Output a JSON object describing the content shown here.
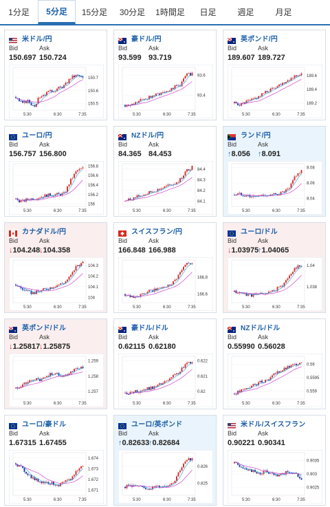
{
  "tabs": [
    {
      "label": "1分足",
      "active": false
    },
    {
      "label": "5分足",
      "active": true
    },
    {
      "label": "15分足",
      "active": false
    },
    {
      "label": "30分足",
      "active": false
    },
    {
      "label": "1時間足",
      "active": false
    },
    {
      "label": "日足",
      "active": false
    },
    {
      "label": "週足",
      "active": false
    },
    {
      "label": "月足",
      "active": false
    }
  ],
  "labels": {
    "bid": "Bid",
    "ask": "Ask"
  },
  "colors": {
    "link": "#1a5ea8",
    "up_arrow": "#1b6fc4",
    "down_arrow": "#dd3333",
    "candle_up": "#d33333",
    "candle_down": "#1f3fa6",
    "ma_short": "#39a9e0",
    "ma_long": "#cc44cc"
  },
  "cards": [
    {
      "pair": "米ドル/円",
      "flag": "us",
      "bid": "150.697",
      "ask": "150.724",
      "bid_arrow": "",
      "ask_arrow": "",
      "state": "none",
      "chart_data": {
        "type": "candlestick",
        "x_ticks": [
          "5:30",
          "6:30",
          "7:35"
        ],
        "y_ticks": [
          "150.7",
          "150.6",
          "150.5"
        ],
        "ylim": [
          150.45,
          150.78
        ],
        "trend": [
          150.55,
          150.5,
          150.52,
          150.48,
          150.56,
          150.58,
          150.6,
          150.62,
          150.64,
          150.7,
          150.72,
          150.7
        ]
      }
    },
    {
      "pair": "豪ドル/円",
      "flag": "au",
      "bid": "93.599",
      "ask": "93.719",
      "bid_arrow": "",
      "ask_arrow": "",
      "state": "none",
      "chart_data": {
        "type": "candlestick",
        "x_ticks": [
          "5:30",
          "6:30",
          "7:35"
        ],
        "y_ticks": [
          "93.6",
          "93.4"
        ],
        "ylim": [
          93.25,
          93.68
        ],
        "trend": [
          93.3,
          93.3,
          93.33,
          93.36,
          93.38,
          93.4,
          93.43,
          93.45,
          93.48,
          93.5,
          93.6,
          93.62
        ]
      }
    },
    {
      "pair": "英ポンド/円",
      "flag": "uk",
      "bid": "189.607",
      "ask": "189.727",
      "bid_arrow": "",
      "ask_arrow": "",
      "state": "none",
      "chart_data": {
        "type": "candlestick",
        "x_ticks": [
          "5:30",
          "6:30",
          "7:35"
        ],
        "y_ticks": [
          "189.6",
          "189.4",
          "189.2"
        ],
        "ylim": [
          189.1,
          189.72
        ],
        "trend": [
          189.2,
          189.18,
          189.22,
          189.25,
          189.3,
          189.35,
          189.4,
          189.45,
          189.5,
          189.55,
          189.6,
          189.62
        ]
      }
    },
    {
      "pair": "ユーロ/円",
      "flag": "eu",
      "bid": "156.757",
      "ask": "156.800",
      "bid_arrow": "",
      "ask_arrow": "",
      "state": "none",
      "chart_data": {
        "type": "candlestick",
        "x_ticks": [
          "5:30",
          "6:30",
          "7:35"
        ],
        "y_ticks": [
          "156.8",
          "156.6",
          "156.4",
          "156.2",
          "156"
        ],
        "ylim": [
          155.95,
          156.85
        ],
        "trend": [
          156.1,
          156.05,
          156.1,
          156.12,
          156.15,
          156.18,
          156.2,
          156.2,
          156.22,
          156.5,
          156.7,
          156.75
        ]
      }
    },
    {
      "pair": "NZドル/円",
      "flag": "nz",
      "bid": "84.365",
      "ask": "84.453",
      "bid_arrow": "",
      "ask_arrow": "",
      "state": "none",
      "chart_data": {
        "type": "candlestick",
        "x_ticks": [
          "5:30",
          "6:30",
          "7:35"
        ],
        "y_ticks": [
          "84.4",
          "84.3",
          "84.2",
          "84.1"
        ],
        "ylim": [
          84.05,
          84.45
        ],
        "trend": [
          84.1,
          84.12,
          84.14,
          84.16,
          84.18,
          84.2,
          84.22,
          84.24,
          84.26,
          84.3,
          84.38,
          84.42
        ]
      }
    },
    {
      "pair": "ランド/円",
      "flag": "za",
      "bid": "8.056",
      "ask": "8.091",
      "bid_arrow": "↑",
      "ask_arrow": "↑",
      "state": "up",
      "chart_data": {
        "type": "candlestick",
        "x_ticks": [
          "5:30",
          "6:30",
          "7:35"
        ],
        "y_ticks": [
          "8.08",
          "8.06",
          "8.04"
        ],
        "ylim": [
          8.03,
          8.085
        ],
        "trend": [
          8.045,
          8.046,
          8.044,
          8.042,
          8.043,
          8.045,
          8.044,
          8.046,
          8.048,
          8.052,
          8.07,
          8.075
        ]
      }
    },
    {
      "pair": "カナダドル/円",
      "flag": "ca",
      "bid": "104.248",
      "ask": "104.358",
      "bid_arrow": "↓",
      "ask_arrow": "↓",
      "state": "down",
      "chart_data": {
        "type": "candlestick",
        "x_ticks": [
          "5:30",
          "6:30",
          "7:35"
        ],
        "y_ticks": [
          "104.3",
          "104.2",
          "104.1",
          "104"
        ],
        "ylim": [
          103.95,
          104.35
        ],
        "trend": [
          104.12,
          104.08,
          104.05,
          104.04,
          104.06,
          104.08,
          104.1,
          104.12,
          104.14,
          104.2,
          104.3,
          104.32
        ]
      }
    },
    {
      "pair": "スイスフラン/円",
      "flag": "ch",
      "bid": "166.848",
      "ask": "166.988",
      "bid_arrow": "",
      "ask_arrow": "",
      "state": "none",
      "chart_data": {
        "type": "candlestick",
        "x_ticks": [
          "5:30",
          "6:30",
          "7:35"
        ],
        "y_ticks": [
          "166.8",
          "166.6"
        ],
        "ylim": [
          166.5,
          167.0
        ],
        "trend": [
          166.6,
          166.58,
          166.57,
          166.6,
          166.63,
          166.65,
          166.68,
          166.7,
          166.75,
          166.85,
          166.95,
          166.98
        ]
      }
    },
    {
      "pair": "ユーロ/ドル",
      "flag": "eu-us",
      "bid": "1.03975",
      "ask": "1.04065",
      "bid_arrow": "↓",
      "ask_arrow": "↑",
      "state": "down",
      "chart_data": {
        "type": "candlestick",
        "x_ticks": [
          "5:30",
          "6:30",
          "7:35"
        ],
        "y_ticks": [
          "1.04",
          "1.038"
        ],
        "ylim": [
          1.0365,
          1.0405
        ],
        "trend": [
          1.0375,
          1.0374,
          1.0373,
          1.0372,
          1.0373,
          1.0374,
          1.0375,
          1.0378,
          1.0382,
          1.039,
          1.0398,
          1.04
        ]
      }
    },
    {
      "pair": "英ポンド/ドル",
      "flag": "uk-us",
      "bid": "1.25817",
      "ask": "1.25875",
      "bid_arrow": "↓",
      "ask_arrow": "↓",
      "state": "down",
      "chart_data": {
        "type": "candlestick",
        "x_ticks": [
          "5:30",
          "6:30",
          "7:35"
        ],
        "y_ticks": [
          "1.259",
          "1.258",
          "1.257"
        ],
        "ylim": [
          1.2565,
          1.2593
        ],
        "trend": [
          1.2572,
          1.2574,
          1.2576,
          1.2578,
          1.2577,
          1.258,
          1.2582,
          1.2581,
          1.258,
          1.2583,
          1.2585,
          1.2586
        ]
      }
    },
    {
      "pair": "豪ドル/ドル",
      "flag": "au-us",
      "bid": "0.62115",
      "ask": "0.62180",
      "bid_arrow": "",
      "ask_arrow": "",
      "state": "none",
      "chart_data": {
        "type": "candlestick",
        "x_ticks": [
          "5:30",
          "6:30",
          "7:35"
        ],
        "y_ticks": [
          "0.622",
          "0.621",
          "0.62"
        ],
        "ylim": [
          0.6195,
          0.6223
        ],
        "trend": [
          0.6199,
          0.6199,
          0.62,
          0.6201,
          0.6202,
          0.6203,
          0.6205,
          0.6207,
          0.621,
          0.6213,
          0.6218,
          0.622
        ]
      }
    },
    {
      "pair": "NZドル/ドル",
      "flag": "nz-us",
      "bid": "0.55990",
      "ask": "0.56028",
      "bid_arrow": "",
      "ask_arrow": "",
      "state": "none",
      "chart_data": {
        "type": "candlestick",
        "x_ticks": [
          "5:30",
          "6:30",
          "7:35"
        ],
        "y_ticks": [
          "0.56",
          "0.5595",
          "0.559"
        ],
        "ylim": [
          0.5587,
          0.5603
        ],
        "trend": [
          0.5589,
          0.559,
          0.5591,
          0.5592,
          0.5593,
          0.5594,
          0.5595,
          0.5597,
          0.5598,
          0.5599,
          0.56,
          0.5601
        ]
      }
    },
    {
      "pair": "ユーロ/豪ドル",
      "flag": "eu-au",
      "bid": "1.67315",
      "ask": "1.67455",
      "bid_arrow": "",
      "ask_arrow": "",
      "state": "none",
      "chart_data": {
        "type": "candlestick",
        "x_ticks": [
          "5:30",
          "6:30",
          "7:35"
        ],
        "y_ticks": [
          "1.674",
          "1.673",
          "1.672",
          "1.671"
        ],
        "ylim": [
          1.6705,
          1.6745
        ],
        "trend": [
          1.6735,
          1.673,
          1.6725,
          1.672,
          1.6718,
          1.6717,
          1.6716,
          1.6715,
          1.6717,
          1.672,
          1.6728,
          1.6733
        ]
      }
    },
    {
      "pair": "ユーロ/英ポンド",
      "flag": "eu-uk",
      "bid": "0.82633",
      "ask": "0.82684",
      "bid_arrow": "↑",
      "ask_arrow": "↑",
      "state": "up",
      "chart_data": {
        "type": "candlestick",
        "x_ticks": [
          "5:30",
          "6:30",
          "7:35"
        ],
        "y_ticks": [
          "0.826",
          "0.825"
        ],
        "ylim": [
          0.8243,
          0.8268
        ],
        "trend": [
          0.8248,
          0.8249,
          0.8248,
          0.8247,
          0.8247,
          0.8248,
          0.8248,
          0.8249,
          0.8251,
          0.8258,
          0.8263,
          0.8265
        ]
      }
    },
    {
      "pair": "米ドル/スイスフラン",
      "flag": "us-ch",
      "bid": "0.90221",
      "ask": "0.90341",
      "bid_arrow": "",
      "ask_arrow": "",
      "state": "none",
      "chart_data": {
        "type": "candlestick",
        "x_ticks": [
          "5:30",
          "6:30",
          "7:35"
        ],
        "y_ticks": [
          "0.9035",
          "0.903",
          "0.9025"
        ],
        "ylim": [
          0.9022,
          0.9038
        ],
        "trend": [
          0.9034,
          0.9033,
          0.9032,
          0.9031,
          0.903,
          0.9031,
          0.903,
          0.9029,
          0.903,
          0.9031,
          0.903,
          0.9028
        ]
      }
    }
  ]
}
